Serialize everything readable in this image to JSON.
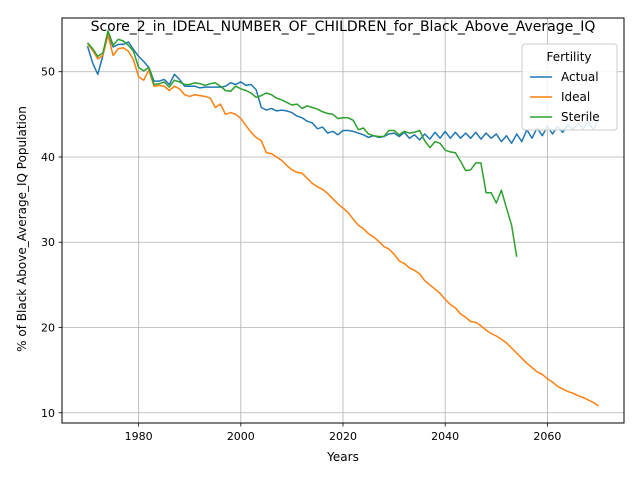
{
  "chart_data": {
    "type": "line",
    "title": "Score_2_in_IDEAL_NUMBER_OF_CHILDREN_for_Black_Above_Average_IQ",
    "xlabel": "Years",
    "ylabel": "% of Black Above_Average_IQ Population",
    "xlim": [
      1965,
      2075
    ],
    "ylim": [
      8.8,
      56.3
    ],
    "xticks": [
      1980,
      2000,
      2020,
      2040,
      2060
    ],
    "yticks": [
      10,
      20,
      30,
      40,
      50
    ],
    "grid": true,
    "legend": {
      "title": "Fertility",
      "position": "top-right"
    },
    "series": [
      {
        "name": "Actual",
        "color": "#1f77b4",
        "x": [
          1970,
          1971,
          1972,
          1973,
          1974,
          1975,
          1976,
          1977,
          1978,
          1979,
          1980,
          1981,
          1982,
          1983,
          1984,
          1985,
          1986,
          1987,
          1988,
          1989,
          1990,
          1991,
          1992,
          1993,
          1994,
          1995,
          1996,
          1997,
          1998,
          1999,
          2000,
          2001,
          2002,
          2003,
          2004,
          2005,
          2006,
          2007,
          2008,
          2009,
          2010,
          2011,
          2012,
          2013,
          2014,
          2015,
          2016,
          2017,
          2018,
          2019,
          2020,
          2021,
          2022,
          2023,
          2024,
          2025,
          2026,
          2027,
          2028,
          2029,
          2030,
          2031,
          2032,
          2033,
          2034,
          2035,
          2036,
          2037,
          2038,
          2039,
          2040,
          2041,
          2042,
          2043,
          2044,
          2045,
          2046,
          2047,
          2048,
          2049,
          2050,
          2051,
          2052,
          2053,
          2054,
          2055,
          2056,
          2057,
          2058,
          2059,
          2060,
          2061,
          2062,
          2063,
          2064,
          2065,
          2066,
          2067,
          2068,
          2069,
          2070
        ],
        "y": [
          53.0,
          51.0,
          49.7,
          51.9,
          54.5,
          52.9,
          53.2,
          53.2,
          53.5,
          52.6,
          51.8,
          51.2,
          50.5,
          48.9,
          48.9,
          49.1,
          48.5,
          49.7,
          49.1,
          48.3,
          48.3,
          48.3,
          48.1,
          48.2,
          48.2,
          48.2,
          48.2,
          48.3,
          48.7,
          48.5,
          48.8,
          48.4,
          48.5,
          47.9,
          45.8,
          45.5,
          45.7,
          45.4,
          45.5,
          45.4,
          45.2,
          44.8,
          44.6,
          44.2,
          44.0,
          43.3,
          43.5,
          42.8,
          43.0,
          42.6,
          43.1,
          43.1,
          43.0,
          42.8,
          42.6,
          42.3,
          42.5,
          42.3,
          42.4,
          42.7,
          42.8,
          42.4,
          42.9,
          42.2,
          42.6,
          42.0,
          42.7,
          42.1,
          42.9,
          42.2,
          43.0,
          42.2,
          42.9,
          42.2,
          42.8,
          42.2,
          42.9,
          42.1,
          42.8,
          42.2,
          42.7,
          41.8,
          42.5,
          41.6,
          42.7,
          41.8,
          43.2,
          42.2,
          43.4,
          42.5,
          43.6,
          42.7,
          43.6,
          42.9,
          43.8,
          43.2,
          44.0,
          43.3,
          44.1,
          43.2,
          44.4
        ]
      },
      {
        "name": "Ideal",
        "color": "#ff7f0e",
        "x": [
          1970,
          1971,
          1972,
          1973,
          1974,
          1975,
          1976,
          1977,
          1978,
          1979,
          1980,
          1981,
          1982,
          1983,
          1984,
          1985,
          1986,
          1987,
          1988,
          1989,
          1990,
          1991,
          1992,
          1993,
          1994,
          1995,
          1996,
          1997,
          1998,
          1999,
          2000,
          2001,
          2002,
          2003,
          2004,
          2005,
          2006,
          2007,
          2008,
          2009,
          2010,
          2011,
          2012,
          2013,
          2014,
          2015,
          2016,
          2017,
          2018,
          2019,
          2020,
          2021,
          2022,
          2023,
          2024,
          2025,
          2026,
          2027,
          2028,
          2029,
          2030,
          2031,
          2032,
          2033,
          2034,
          2035,
          2036,
          2037,
          2038,
          2039,
          2040,
          2041,
          2042,
          2043,
          2044,
          2045,
          2046,
          2047,
          2048,
          2049,
          2050,
          2051,
          2052,
          2053,
          2054,
          2055,
          2056,
          2057,
          2058,
          2059,
          2060,
          2061,
          2062,
          2063,
          2064,
          2065,
          2066,
          2067,
          2068,
          2069,
          2070
        ],
        "y": [
          53.3,
          52.5,
          51.5,
          51.9,
          54.3,
          51.9,
          52.7,
          52.8,
          52.4,
          51.4,
          49.4,
          49.0,
          50.2,
          48.3,
          48.4,
          48.3,
          47.8,
          48.3,
          48.0,
          47.3,
          47.1,
          47.3,
          47.2,
          47.1,
          46.9,
          45.8,
          46.2,
          45.0,
          45.2,
          45.0,
          44.5,
          43.7,
          42.9,
          42.3,
          41.9,
          40.5,
          40.4,
          40.0,
          39.6,
          39.0,
          38.5,
          38.2,
          38.1,
          37.5,
          36.9,
          36.5,
          36.2,
          35.7,
          35.1,
          34.5,
          34.0,
          33.5,
          32.7,
          32.0,
          31.6,
          31.0,
          30.6,
          30.1,
          29.5,
          29.2,
          28.6,
          27.8,
          27.5,
          27.0,
          26.7,
          26.3,
          25.5,
          25.0,
          24.5,
          24.0,
          23.3,
          22.7,
          22.3,
          21.6,
          21.2,
          20.7,
          20.6,
          20.2,
          19.7,
          19.3,
          19.0,
          18.6,
          18.2,
          17.6,
          17.0,
          16.4,
          15.8,
          15.3,
          14.8,
          14.5,
          14.0,
          13.6,
          13.1,
          12.8,
          12.5,
          12.3,
          12.0,
          11.8,
          11.5,
          11.2,
          10.8
        ]
      },
      {
        "name": "Sterile",
        "color": "#2ca02c",
        "x": [
          1970,
          1971,
          1972,
          1973,
          1974,
          1975,
          1976,
          1977,
          1978,
          1979,
          1980,
          1981,
          1982,
          1983,
          1984,
          1985,
          1986,
          1987,
          1988,
          1989,
          1990,
          1991,
          1992,
          1993,
          1994,
          1995,
          1996,
          1997,
          1998,
          1999,
          2000,
          2001,
          2002,
          2003,
          2004,
          2005,
          2006,
          2007,
          2008,
          2009,
          2010,
          2011,
          2012,
          2013,
          2014,
          2015,
          2016,
          2017,
          2018,
          2019,
          2020,
          2021,
          2022,
          2023,
          2024,
          2025,
          2026,
          2027,
          2028,
          2029,
          2030,
          2031,
          2032,
          2033,
          2034,
          2035,
          2036,
          2037,
          2038,
          2039,
          2040,
          2041,
          2042,
          2043,
          2044,
          2045,
          2046,
          2047,
          2048,
          2049,
          2050,
          2051,
          2052,
          2053,
          2054
        ],
        "y": [
          53.4,
          52.7,
          51.8,
          52.2,
          54.8,
          53.1,
          53.8,
          53.6,
          53.1,
          52.4,
          50.5,
          50.1,
          50.5,
          48.5,
          48.6,
          48.8,
          48.2,
          49.0,
          48.8,
          48.5,
          48.5,
          48.7,
          48.6,
          48.4,
          48.6,
          48.7,
          48.3,
          47.8,
          47.7,
          48.3,
          48.0,
          47.8,
          47.5,
          47.0,
          47.2,
          47.5,
          47.3,
          46.9,
          46.7,
          46.4,
          46.1,
          46.2,
          45.7,
          46.0,
          45.8,
          45.6,
          45.3,
          45.1,
          45.0,
          44.5,
          44.6,
          44.6,
          44.3,
          43.2,
          43.4,
          42.7,
          42.5,
          42.4,
          42.4,
          43.1,
          43.1,
          42.6,
          43.0,
          42.8,
          42.9,
          43.1,
          41.9,
          41.1,
          41.8,
          41.6,
          40.8,
          40.6,
          40.5,
          39.5,
          38.4,
          38.5,
          39.3,
          39.3,
          35.8,
          35.8,
          34.6,
          36.1,
          34.0,
          32.0,
          28.3
        ]
      }
    ]
  }
}
